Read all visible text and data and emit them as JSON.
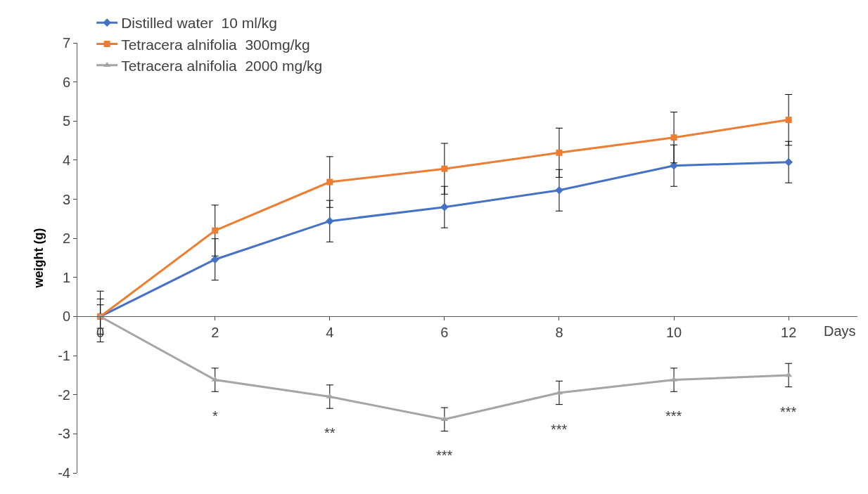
{
  "chart_data": {
    "type": "line",
    "ylabel": "weight (g)",
    "xlabel": "Days",
    "x": [
      0,
      2,
      4,
      6,
      8,
      10,
      12
    ],
    "series": [
      {
        "name": "Distilled water  10 ml/kg",
        "color": "#4472c4",
        "marker": "diamond",
        "values": [
          0,
          1.46,
          2.44,
          2.8,
          3.23,
          3.86,
          3.95
        ],
        "errors": [
          0.45,
          0.53,
          0.53,
          0.53,
          0.53,
          0.53,
          0.53
        ]
      },
      {
        "name": "Tetracera alnifolia  300mg/kg",
        "color": "#ed7d31",
        "marker": "square",
        "values": [
          0,
          2.2,
          3.44,
          3.78,
          4.19,
          4.58,
          5.03
        ],
        "errors": [
          0.65,
          0.65,
          0.65,
          0.65,
          0.63,
          0.65,
          0.65
        ]
      },
      {
        "name": "Tetracera alnifolia  2000 mg/kg",
        "color": "#a5a5a5",
        "marker": "triangle",
        "values": [
          0,
          -1.62,
          -2.05,
          -2.63,
          -1.95,
          -1.62,
          -1.5
        ],
        "errors": [
          0.3,
          0.3,
          0.3,
          0.3,
          0.3,
          0.3,
          0.3
        ]
      }
    ],
    "xlim": [
      -0.4,
      13.2
    ],
    "xticks": [
      {
        "value": 0,
        "label": "0"
      },
      {
        "value": 2,
        "label": "2"
      },
      {
        "value": 4,
        "label": "4"
      },
      {
        "value": 6,
        "label": "6"
      },
      {
        "value": 8,
        "label": "8"
      },
      {
        "value": 10,
        "label": "10"
      },
      {
        "value": 12,
        "label": "12"
      }
    ],
    "ylim": [
      -4,
      7
    ],
    "yticks": [
      -4,
      -3,
      -2,
      -1,
      0,
      1,
      2,
      3,
      4,
      5,
      6,
      7
    ],
    "legend": "top left",
    "line_style": "solid",
    "annotations": [
      "*",
      "**",
      "***",
      "***",
      "***",
      "***"
    ]
  }
}
